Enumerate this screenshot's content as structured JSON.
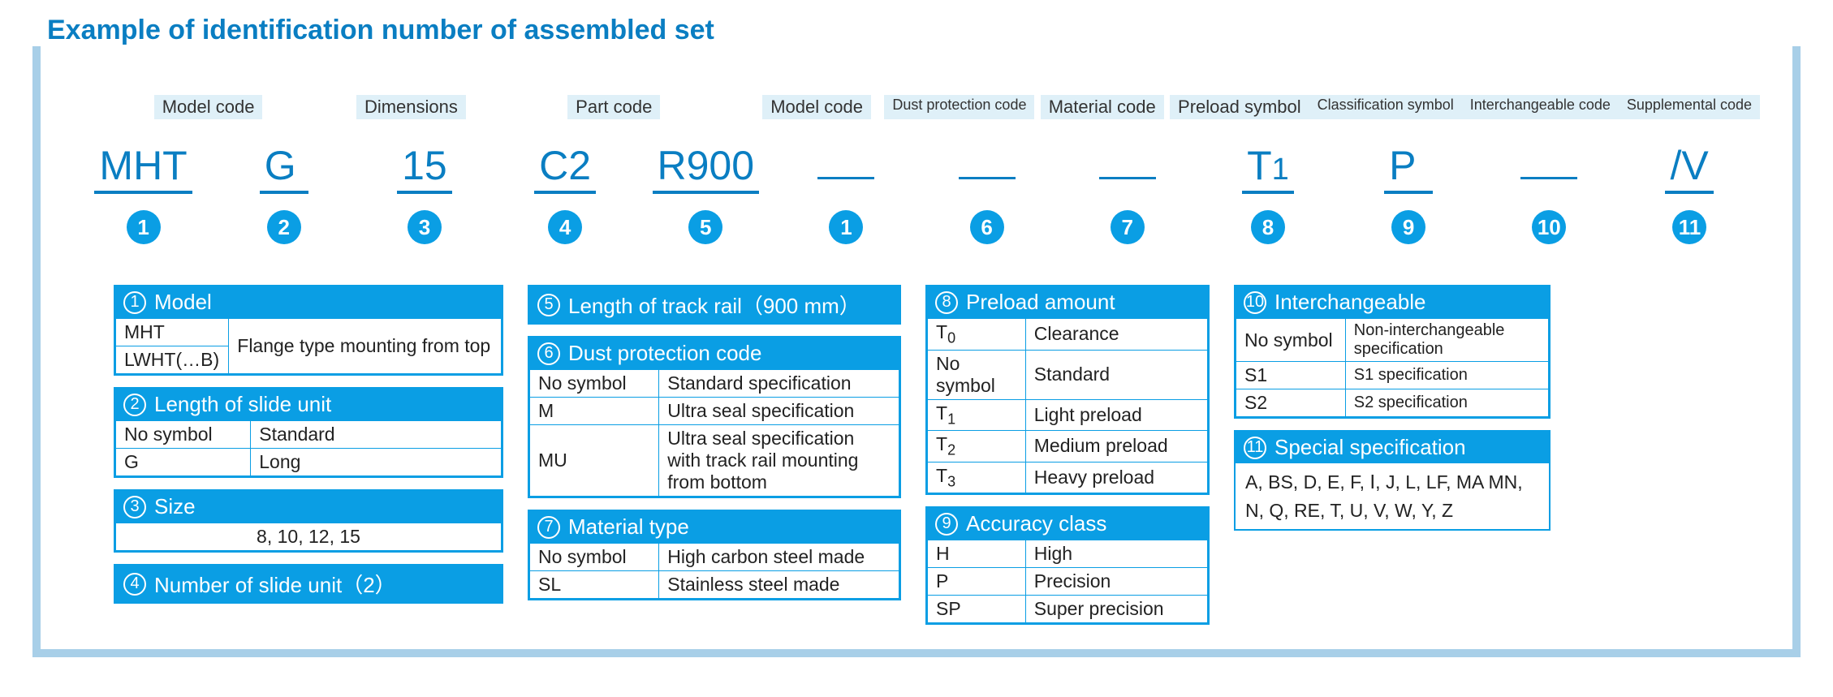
{
  "title": "Example of identification number of assembled set",
  "colors": {
    "accent": "#0a7ec2",
    "badge": "#0a9ee4",
    "frame": "#a8cfe8",
    "labelbg": "#dff0f8"
  },
  "top_labels": [
    "Model code",
    "Dimensions",
    "Part code",
    "Model code",
    "Dust protection code",
    "Material code",
    "Preload symbol",
    "Classification symbol",
    "Interchangeable code",
    "Supplemental code"
  ],
  "segments": [
    {
      "text": "MHT",
      "badge": "1",
      "label_idx": 0
    },
    {
      "text": "G",
      "badge": "2",
      "label_idx": 0
    },
    {
      "text": "15",
      "badge": "3",
      "label_idx": 1
    },
    {
      "text": "C2",
      "badge": "4",
      "label_idx": 2
    },
    {
      "text": "R900",
      "badge": "5",
      "label_idx": 2
    },
    {
      "text": "",
      "badge": "1",
      "label_idx": 3
    },
    {
      "text": "",
      "badge": "6",
      "label_idx": 4
    },
    {
      "text": "",
      "badge": "7",
      "label_idx": 5
    },
    {
      "text": "T1",
      "badge": "8",
      "label_idx": 6,
      "sub": true
    },
    {
      "text": "P",
      "badge": "9",
      "label_idx": 7
    },
    {
      "text": "",
      "badge": "10",
      "label_idx": 8
    },
    {
      "text": "/V",
      "badge": "11",
      "label_idx": 9
    }
  ],
  "boxes": {
    "b1": {
      "num": "1",
      "title": "Model",
      "rows": [
        [
          "MHT",
          ""
        ],
        [
          "LWHT(…B)",
          "Flange type mounting from top"
        ]
      ],
      "merged_desc": true
    },
    "b2": {
      "num": "2",
      "title": "Length of slide unit",
      "rows": [
        [
          "No symbol",
          "Standard"
        ],
        [
          "G",
          "Long"
        ]
      ]
    },
    "b3": {
      "num": "3",
      "title": "Size",
      "center": "8, 10, 12, 15"
    },
    "b4": {
      "num": "4",
      "title": "Number of slide unit（2）"
    },
    "b5": {
      "num": "5",
      "title": "Length of track rail（900 mm）"
    },
    "b6": {
      "num": "6",
      "title": "Dust protection code",
      "rows": [
        [
          "No symbol",
          "Standard specification"
        ],
        [
          "M",
          "Ultra seal specification"
        ],
        [
          "MU",
          "Ultra seal specification with track rail mounting from bottom"
        ]
      ]
    },
    "b7": {
      "num": "7",
      "title": "Material type",
      "rows": [
        [
          "No symbol",
          "High carbon steel made"
        ],
        [
          "SL",
          "Stainless steel made"
        ]
      ]
    },
    "b8": {
      "num": "8",
      "title": "Preload amount",
      "rows": [
        [
          "T0",
          "Clearance"
        ],
        [
          "No symbol",
          "Standard"
        ],
        [
          "T1",
          "Light preload"
        ],
        [
          "T2",
          "Medium preload"
        ],
        [
          "T3",
          "Heavy preload"
        ]
      ],
      "sub_t": true
    },
    "b9": {
      "num": "9",
      "title": "Accuracy class",
      "rows": [
        [
          "H",
          "High"
        ],
        [
          "P",
          "Precision"
        ],
        [
          "SP",
          "Super precision"
        ]
      ]
    },
    "b10": {
      "num": "10",
      "title": "Interchangeable",
      "rows": [
        [
          "No symbol",
          "Non-interchangeable specification"
        ],
        [
          "S1",
          "S1 specification"
        ],
        [
          "S2",
          "S2 specification"
        ]
      ],
      "small_right": true
    },
    "b11": {
      "num": "11",
      "title": "Special specification",
      "list": "A, BS, D, E, F, Ⅰ, J, L, LF, MA MN, N, Q, RE, T, U, V, W, Y, Z"
    }
  }
}
